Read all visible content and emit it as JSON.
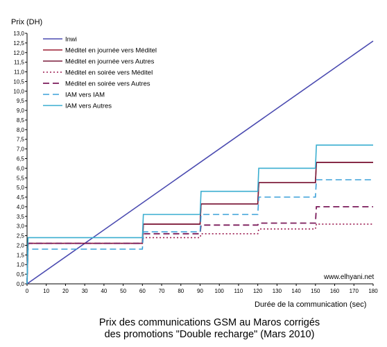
{
  "chart_data": {
    "type": "line",
    "ylabel": "Prix (DH)",
    "xlabel": "Durée de la communication (sec)",
    "title_lines": [
      "Prix des communications GSM au Maros corrigés",
      "des promotions \"Double recharge\" (Mars 2010)"
    ],
    "watermark": "www.elhyani.net",
    "xlim": [
      0,
      180
    ],
    "ylim": [
      0,
      13
    ],
    "x_ticks": [
      0,
      10,
      20,
      30,
      40,
      50,
      60,
      70,
      80,
      90,
      100,
      110,
      120,
      130,
      140,
      150,
      160,
      170,
      180
    ],
    "y_ticks": [
      "0,0",
      "0,5",
      "1,0",
      "1,5",
      "2,0",
      "2,5",
      "3,0",
      "3,5",
      "4,0",
      "4,5",
      "5,0",
      "5,5",
      "6,0",
      "6,5",
      "7,0",
      "7,5",
      "8,0",
      "8,5",
      "9,0",
      "9,5",
      "10,0",
      "10,5",
      "11,0",
      "11,5",
      "12,0",
      "12,5",
      "13,0"
    ],
    "legend_position": "top-left",
    "grid": false,
    "series": [
      {
        "name": "Inwi",
        "color": "#4a4ab0",
        "style": "solid",
        "width": 1.6,
        "points": [
          [
            0,
            0
          ],
          [
            180,
            12.6
          ]
        ]
      },
      {
        "name": "Méditel en journée vers Méditel",
        "color": "#9b1b30",
        "style": "solid",
        "width": 1.6,
        "points": [
          [
            0,
            0
          ],
          [
            0.5,
            2.1
          ],
          [
            60,
            2.1
          ],
          [
            60.5,
            3.1
          ],
          [
            90,
            3.1
          ],
          [
            90.5,
            4.15
          ],
          [
            120,
            4.15
          ],
          [
            120.5,
            5.25
          ],
          [
            150,
            5.25
          ],
          [
            150.5,
            6.3
          ],
          [
            180,
            6.3
          ]
        ]
      },
      {
        "name": "Méditel en journée vers Autres",
        "color": "#7a1a3a",
        "style": "solid",
        "width": 1.6,
        "points": [
          [
            0,
            0
          ],
          [
            0.5,
            2.1
          ],
          [
            60,
            2.1
          ],
          [
            60.5,
            3.1
          ],
          [
            90,
            3.1
          ],
          [
            90.5,
            4.15
          ],
          [
            120,
            4.15
          ],
          [
            120.5,
            5.25
          ],
          [
            150,
            5.25
          ],
          [
            150.5,
            6.3
          ],
          [
            180,
            6.3
          ]
        ]
      },
      {
        "name": "Méditel en soirée vers Méditel",
        "color": "#9b1b50",
        "style": "dotted",
        "width": 1.6,
        "points": [
          [
            0,
            0
          ],
          [
            0.5,
            2.1
          ],
          [
            60,
            2.1
          ],
          [
            60.5,
            2.4
          ],
          [
            90,
            2.4
          ],
          [
            90.5,
            2.6
          ],
          [
            120,
            2.6
          ],
          [
            120.5,
            2.85
          ],
          [
            150,
            2.85
          ],
          [
            150.5,
            3.1
          ],
          [
            180,
            3.1
          ]
        ]
      },
      {
        "name": "Méditel en soirée vers Autres",
        "color": "#7a1a5a",
        "style": "dashed",
        "width": 1.8,
        "points": [
          [
            0,
            0
          ],
          [
            0.5,
            2.1
          ],
          [
            60,
            2.1
          ],
          [
            60.5,
            2.6
          ],
          [
            90,
            2.6
          ],
          [
            90.5,
            3.05
          ],
          [
            120,
            3.05
          ],
          [
            120.5,
            3.15
          ],
          [
            150,
            3.15
          ],
          [
            150.5,
            4.0
          ],
          [
            180,
            4.0
          ]
        ]
      },
      {
        "name": "IAM vers IAM",
        "color": "#3aa0d8",
        "style": "dashed",
        "width": 1.6,
        "points": [
          [
            0,
            0
          ],
          [
            0.5,
            1.8
          ],
          [
            60,
            1.8
          ],
          [
            60.5,
            2.7
          ],
          [
            90,
            2.7
          ],
          [
            90.5,
            3.6
          ],
          [
            120,
            3.6
          ],
          [
            120.5,
            4.5
          ],
          [
            150,
            4.5
          ],
          [
            150.5,
            5.4
          ],
          [
            180,
            5.4
          ]
        ]
      },
      {
        "name": "IAM vers Autres",
        "color": "#3aaed0",
        "style": "solid",
        "width": 1.6,
        "points": [
          [
            0,
            0
          ],
          [
            0.5,
            2.4
          ],
          [
            60,
            2.4
          ],
          [
            60.5,
            3.6
          ],
          [
            90,
            3.6
          ],
          [
            90.5,
            4.8
          ],
          [
            120,
            4.8
          ],
          [
            120.5,
            6.0
          ],
          [
            150,
            6.0
          ],
          [
            150.5,
            7.2
          ],
          [
            180,
            7.2
          ]
        ]
      }
    ]
  }
}
